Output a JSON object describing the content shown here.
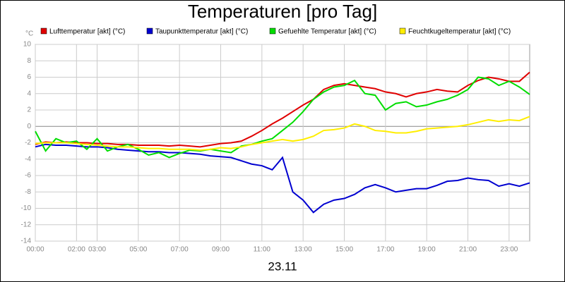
{
  "chart_data": {
    "type": "line",
    "title": "Temperaturen [pro Tag]",
    "y_unit_label": "°C",
    "x_label": "23.11",
    "x": [
      0,
      0.5,
      1,
      1.5,
      2,
      2.5,
      3,
      3.5,
      4,
      4.5,
      5,
      5.5,
      6,
      6.5,
      7,
      7.5,
      8,
      8.5,
      9,
      9.5,
      10,
      10.5,
      11,
      11.5,
      12,
      12.5,
      13,
      13.5,
      14,
      14.5,
      15,
      15.5,
      16,
      16.5,
      17,
      17.5,
      18,
      18.5,
      19,
      19.5,
      20,
      20.5,
      21,
      21.5,
      22,
      22.5,
      23,
      23.5,
      24
    ],
    "series": [
      {
        "name": "Lufttemperatur [akt] (°C)",
        "color": "#e00000",
        "values": [
          -2.2,
          -1.9,
          -2,
          -1.9,
          -2,
          -2,
          -2.1,
          -2.1,
          -2.2,
          -2.2,
          -2.3,
          -2.3,
          -2.3,
          -2.4,
          -2.3,
          -2.4,
          -2.5,
          -2.3,
          -2.1,
          -2,
          -1.8,
          -1.2,
          -0.5,
          0.3,
          1,
          1.8,
          2.6,
          3.3,
          4.5,
          5,
          5.2,
          5,
          4.8,
          4.6,
          4.2,
          4,
          3.6,
          4,
          4.2,
          4.5,
          4.3,
          4.2,
          5,
          5.6,
          6,
          5.8,
          5.5,
          5.5,
          6.6
        ]
      },
      {
        "name": "Taupunkttemperatur [akt] (°C)",
        "color": "#0000d0",
        "values": [
          -2.5,
          -2.2,
          -2.3,
          -2.3,
          -2.4,
          -2.5,
          -2.5,
          -2.6,
          -2.8,
          -2.9,
          -3,
          -3.1,
          -3.1,
          -3.2,
          -3.2,
          -3.3,
          -3.4,
          -3.6,
          -3.7,
          -3.8,
          -4.2,
          -4.6,
          -4.8,
          -5.3,
          -3.8,
          -8,
          -9,
          -10.5,
          -9.5,
          -9,
          -8.8,
          -8.3,
          -7.5,
          -7.1,
          -7.5,
          -8,
          -7.8,
          -7.6,
          -7.6,
          -7.2,
          -6.7,
          -6.6,
          -6.3,
          -6.5,
          -6.6,
          -7.3,
          -7,
          -7.3,
          -6.9
        ]
      },
      {
        "name": "Gefuehlte Temperatur [akt] (°C)",
        "color": "#00dd00",
        "values": [
          -0.6,
          -3,
          -1.5,
          -2,
          -1.8,
          -2.8,
          -1.5,
          -3,
          -2.5,
          -2.2,
          -2.8,
          -3.5,
          -3.2,
          -3.8,
          -3.3,
          -2.9,
          -3,
          -2.8,
          -3,
          -3.2,
          -2.4,
          -2.2,
          -1.8,
          -1.5,
          -0.5,
          0.5,
          1.8,
          3.3,
          4.2,
          4.8,
          5,
          5.6,
          4,
          3.8,
          2,
          2.8,
          3,
          2.4,
          2.6,
          3,
          3.3,
          3.8,
          4.5,
          6,
          5.8,
          5,
          5.5,
          4.8,
          3.9
        ]
      },
      {
        "name": "Feuchtkugeltemperatur [akt] (°C)",
        "color": "#ffee00",
        "values": [
          -2.1,
          -2,
          -2,
          -2,
          -2.1,
          -2.2,
          -2.3,
          -2.4,
          -2.5,
          -2.5,
          -2.6,
          -2.7,
          -2.7,
          -2.8,
          -2.8,
          -2.8,
          -2.9,
          -2.8,
          -2.6,
          -2.7,
          -2.5,
          -2.2,
          -2,
          -1.8,
          -1.6,
          -1.8,
          -1.6,
          -1.2,
          -0.5,
          -0.4,
          -0.2,
          0.3,
          0,
          -0.5,
          -0.6,
          -0.8,
          -0.8,
          -0.6,
          -0.3,
          -0.2,
          -0.1,
          0,
          0.2,
          0.5,
          0.8,
          0.6,
          0.8,
          0.7,
          1.2
        ]
      }
    ],
    "xlim": [
      0,
      24
    ],
    "xticks": [
      {
        "value": 0,
        "label": "00:00"
      },
      {
        "value": 2,
        "label": "02:00"
      },
      {
        "value": 3,
        "label": "03:00"
      },
      {
        "value": 5,
        "label": "05:00"
      },
      {
        "value": 7,
        "label": "07:00"
      },
      {
        "value": 9,
        "label": "09:00"
      },
      {
        "value": 11,
        "label": "11:00"
      },
      {
        "value": 13,
        "label": "13:00"
      },
      {
        "value": 15,
        "label": "15:00"
      },
      {
        "value": 17,
        "label": "17:00"
      },
      {
        "value": 19,
        "label": "19:00"
      },
      {
        "value": 21,
        "label": "21:00"
      },
      {
        "value": 23,
        "label": "23:00"
      }
    ],
    "ylim": [
      -14,
      10
    ],
    "yticks": [
      -14,
      -12,
      -10,
      -8,
      -6,
      -4,
      -2,
      0,
      2,
      4,
      6,
      8,
      10
    ],
    "grid": true
  }
}
